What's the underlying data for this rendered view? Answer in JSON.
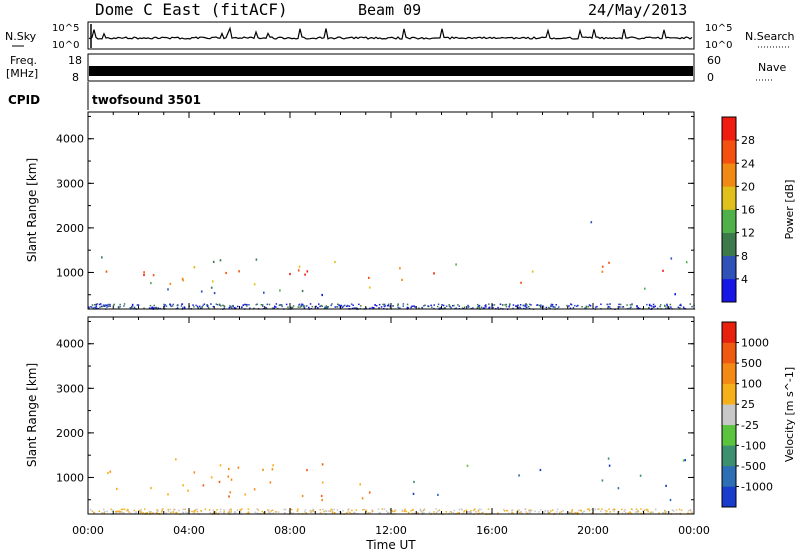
{
  "header": {
    "title": "Dome C East (fitACF)",
    "beam": "Beam 09",
    "date": "24/May/2013"
  },
  "strip_noise": {
    "left_label": "N.Sky",
    "left_ticks": [
      "10^5",
      "10^0"
    ],
    "right_label": "N.Search",
    "right_ticks": [
      "10^5",
      "10^0"
    ]
  },
  "strip_freq": {
    "left_label_1": "Freq.",
    "left_label_2": "[MHz]",
    "left_ticks": [
      "18",
      "8"
    ],
    "right_label": "Nave",
    "right_ticks": [
      "60",
      "0"
    ]
  },
  "cpid": {
    "label": "CPID",
    "value": "twofsound 3501"
  },
  "chart_data": [
    {
      "type": "heatmap",
      "parameter": "Power",
      "ylabel": "Slant Range [km]",
      "xlabel": "",
      "y_ticks": [
        "4000",
        "3000",
        "2000",
        "1000"
      ],
      "ylim": [
        180,
        4600
      ],
      "xlim_hours": [
        0,
        24
      ],
      "colorbar": {
        "label": "Power [dB]",
        "ticks": [
          "28",
          "24",
          "20",
          "16",
          "12",
          "8",
          "4"
        ],
        "range": [
          0,
          32
        ],
        "colors": [
          "#1616e6",
          "#2e52b8",
          "#3c7a4c",
          "#50b04a",
          "#e0c01a",
          "#f08a14",
          "#f45010",
          "#f01c10"
        ]
      }
    },
    {
      "type": "heatmap",
      "parameter": "Velocity",
      "ylabel": "Slant Range [km]",
      "xlabel": "Time UT",
      "x_ticks": [
        "00:00",
        "04:00",
        "08:00",
        "12:00",
        "16:00",
        "20:00",
        "00:00"
      ],
      "y_ticks": [
        "4000",
        "3000",
        "2000",
        "1000"
      ],
      "ylim": [
        180,
        4600
      ],
      "xlim_hours": [
        0,
        24
      ],
      "colorbar": {
        "label": "Velocity [m s^-1]",
        "ticks": [
          "1000",
          "500",
          "100",
          "25",
          "-25",
          "-100",
          "-500",
          "-1000"
        ],
        "colors": [
          "#1a3ccc",
          "#2e6eb4",
          "#3c9070",
          "#5ac43e",
          "#c8c8c8",
          "#f5b01a",
          "#f48a14",
          "#f05a10",
          "#e8200e"
        ]
      }
    }
  ]
}
